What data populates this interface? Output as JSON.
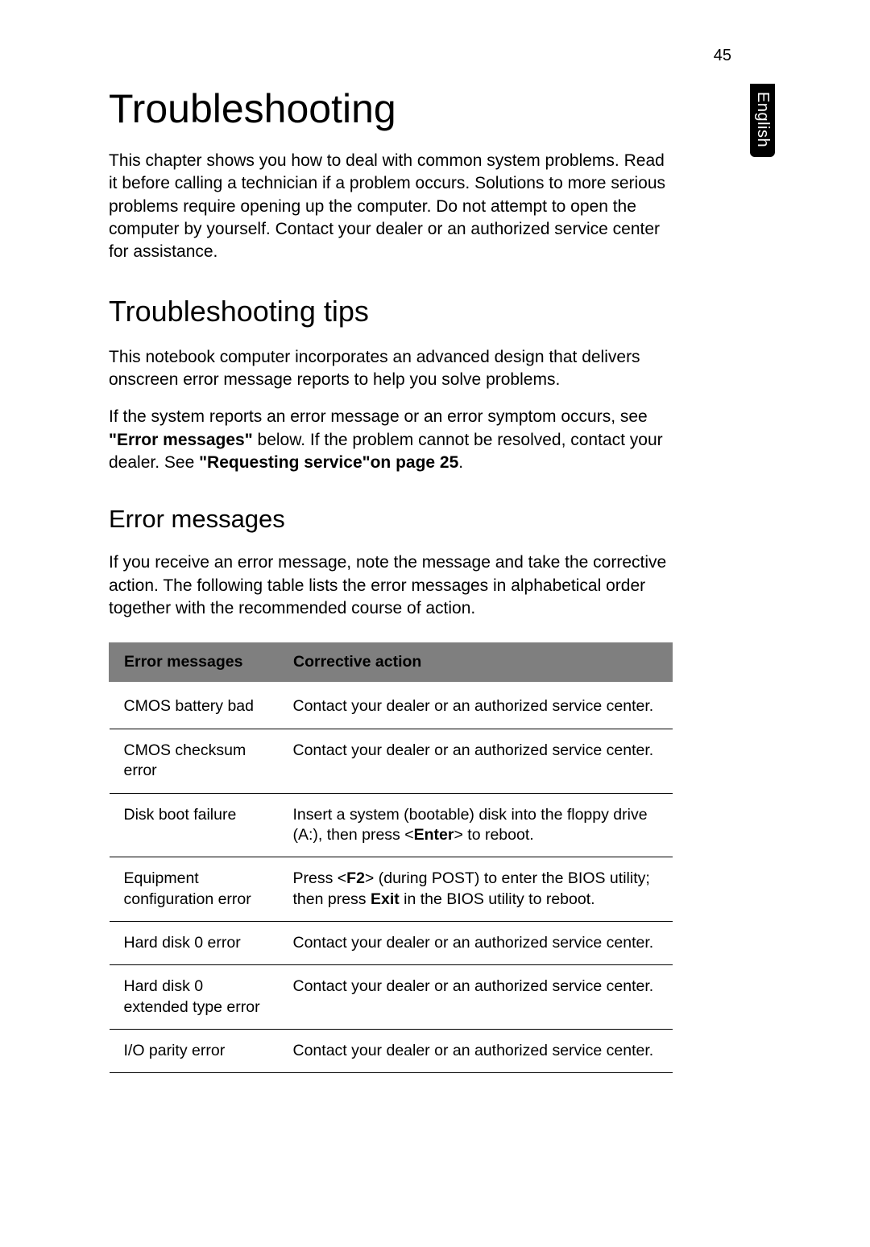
{
  "page_number": "45",
  "language_tab": "English",
  "h1": "Troubleshooting",
  "intro": "This chapter shows you how to deal with common system problems. Read it before calling a technician if a problem occurs. Solutions to more serious problems require opening up the computer. Do not attempt to open the computer by yourself. Contact your dealer or an authorized service center for assistance.",
  "h2": "Troubleshooting tips",
  "tips_p1": "This notebook computer incorporates an advanced design that delivers onscreen error message reports to help you solve problems.",
  "tips_p2_a": "If the system reports an error message or an error symptom occurs, see ",
  "tips_p2_bold1": "\"Error messages\"",
  "tips_p2_b": " below. If the problem cannot be resolved, contact your dealer. See ",
  "tips_p2_bold2": "\"Requesting service\"on page 25",
  "tips_p2_c": ".",
  "h3": "Error messages",
  "err_intro": "If you receive an error message, note the message and take the corrective action. The following table lists the error messages in alphabetical order together with the recommended course of action.",
  "table": {
    "header": [
      "Error messages",
      "Corrective action"
    ],
    "rows": [
      {
        "msg": "CMOS battery bad",
        "action_plain": "Contact your dealer or an authorized service center."
      },
      {
        "msg": "CMOS checksum error",
        "action_plain": "Contact your dealer or an authorized service center."
      },
      {
        "msg": "Disk boot failure",
        "action_pre": "Insert a system (bootable) disk into the floppy drive (A:), then press <",
        "action_bold": "Enter",
        "action_post": "> to reboot."
      },
      {
        "msg": "Equipment configuration error",
        "action_pre": "Press <",
        "action_bold": "F2",
        "action_mid": "> (during POST) to enter the BIOS utility; then press ",
        "action_bold2": "Exit",
        "action_post": " in the BIOS utility to reboot."
      },
      {
        "msg": "Hard disk 0 error",
        "action_plain": "Contact your dealer or an authorized service center."
      },
      {
        "msg": "Hard disk 0 extended type error",
        "action_plain": "Contact your dealer or an authorized service center."
      },
      {
        "msg": "I/O parity error",
        "action_plain": "Contact your dealer or an authorized service center."
      }
    ]
  },
  "styling": {
    "page_bg": "#ffffff",
    "text_color": "#000000",
    "table_header_bg": "#7f7f7f",
    "table_border_color": "#000000",
    "h1_fontsize": 50,
    "h2_fontsize": 36,
    "h3_fontsize": 31,
    "body_fontsize": 21,
    "table_fontsize": 19.5,
    "tab_bg": "#000000",
    "tab_color": "#ffffff"
  }
}
